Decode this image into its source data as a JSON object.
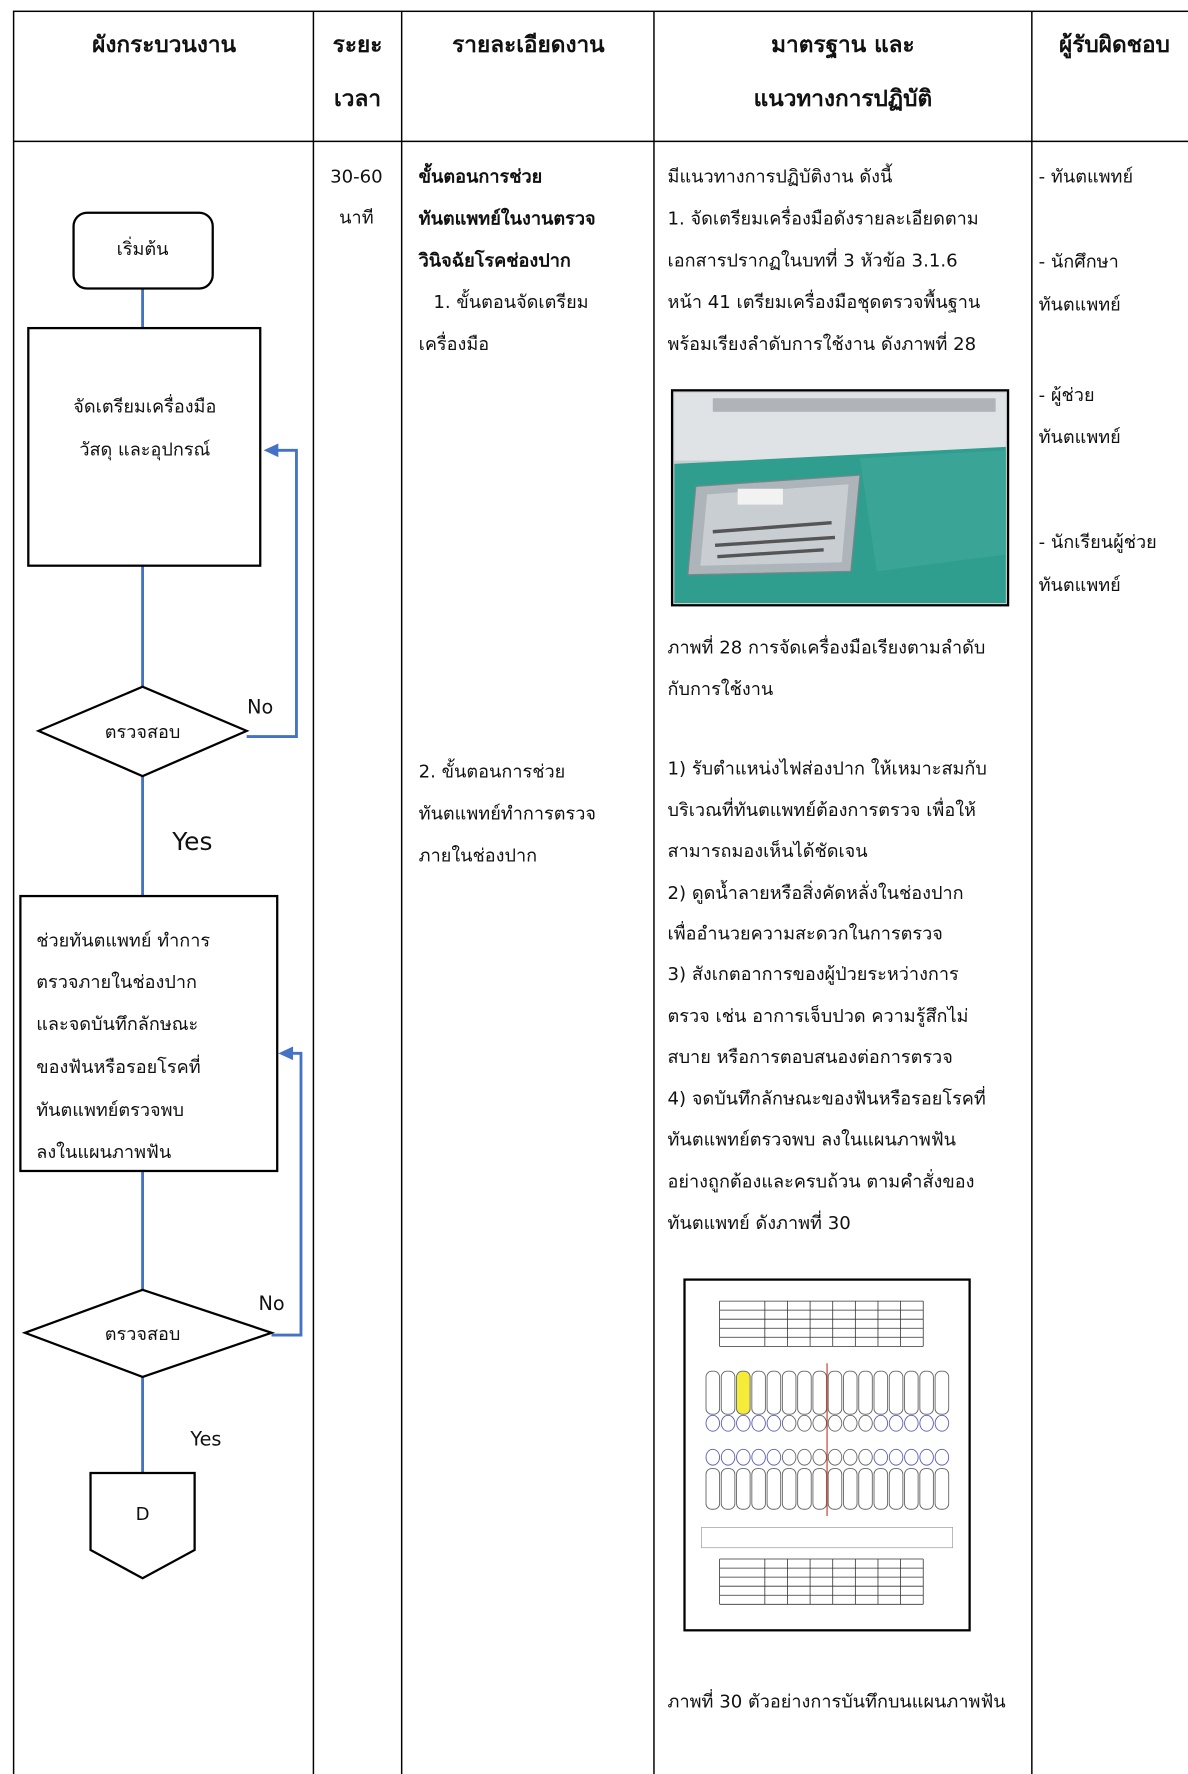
{
  "header": {
    "columns": [
      [
        "ผังกระบวนงาน"
      ],
      [
        "ระยะ",
        "เวลา"
      ],
      [
        "รายละเอียดงาน"
      ],
      [
        "มาตรฐาน และ",
        "แนวทางการปฏิบัติ"
      ],
      [
        "ผู้รับผิดชอบ"
      ]
    ]
  },
  "row": {
    "time": [
      "30-60",
      "นาที"
    ],
    "detail": [
      "ขั้นตอนการช่วย",
      "ทันตแพทย์ในงานตรวจ",
      "วินิจฉัยโรคช่องปาก",
      "1. ขั้นตอนจัดเตรียม",
      "เครื่องมือ",
      "2. ขั้นตอนการช่วย",
      "ทันตแพทย์ทำการตรวจ",
      "ภายในช่องปาก"
    ],
    "standards": [
      "มีแนวทางการปฏิบัติงาน ดังนี้",
      "1. จัดเตรียมเครื่องมือดังรายละเอียดตาม",
      "เอกสารปรากฏในบทที่ 3 หัวข้อ 3.1.6",
      "หน้า 41 เตรียมเครื่องมือชุดตรวจพื้นฐาน",
      "พร้อมเรียงลำดับการใช้งาน ดังภาพที่ 28",
      "1) รับตำแหน่งไฟส่องปาก ให้เหมาะสมกับ",
      "บริเวณที่ทันตแพทย์ต้องการตรวจ เพื่อให้",
      "สามารถมองเห็นได้ชัดเจน",
      "2) ดูดน้ำลายหรือสิ่งคัดหลั่งในช่องปาก",
      "เพื่ออำนวยความสะดวกในการตรวจ",
      "3) สังเกตอาการของผู้ป่วยระหว่างการ",
      "ตรวจ เช่น อาการเจ็บปวด ความรู้สึกไม่",
      "สบาย หรือการตอบสนองต่อการตรวจ",
      "4) จดบันทึกลักษณะของฟันหรือรอยโรคที่",
      "ทันตแพทย์ตรวจพบ ลงในแผนภาพฟัน",
      "อย่างถูกต้องและครบถ้วน ตามคำสั่งของ",
      "ทันตแพทย์ ดังภาพที่ 30"
    ],
    "responsible": [
      "- ทันตแพทย์",
      "- นักศึกษา",
      "ทันตแพทย์",
      "- ผู้ช่วย",
      "ทันตแพทย์",
      "- นักเรียนผู้ช่วย",
      "ทันตแพทย์"
    ]
  },
  "figures": [
    {
      "caption": [
        "ภาพที่ 28 การจัดเครื่องมือเรียงตามลำดับ",
        "กับการใช้งาน"
      ]
    },
    {
      "caption": [
        "ภาพที่ 30 ตัวอย่างการบันทึกบนแผนภาพฟัน"
      ]
    }
  ],
  "flowchart": {
    "nodes": [
      {
        "label": [
          "เริ่มต้น"
        ]
      },
      {
        "label": [
          "จัดเตรียมเครื่องมือ",
          "วัสดุ และอุปกรณ์"
        ]
      },
      {
        "label": [
          "ตรวจสอบ"
        ]
      },
      {
        "label": [
          "ช่วยทันตแพทย์ ทำการ",
          "ตรวจภายในช่องปาก",
          "และจดบันทึกลักษณะ",
          "ของฟันหรือรอยโรคที่",
          "ทันตแพทย์ตรวจพบ",
          "ลงในแผนภาพฟัน"
        ]
      },
      {
        "label": [
          "ตรวจสอบ"
        ]
      },
      {
        "label": [
          "D"
        ]
      }
    ],
    "edge_labels": [
      "No",
      "Yes",
      "No",
      "Yes"
    ]
  }
}
